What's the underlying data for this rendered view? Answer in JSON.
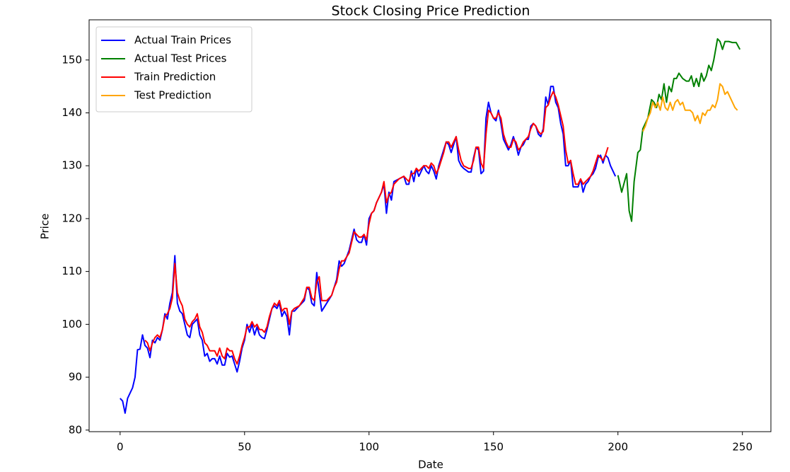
{
  "chart_data": {
    "type": "line",
    "title": "Stock Closing Price Prediction",
    "x_label": "Date",
    "y_label": "Price",
    "xlim": [
      -12.45,
      261.45
    ],
    "ylim": [
      79.7,
      157.6
    ],
    "xticks": [
      0,
      50,
      100,
      150,
      200,
      250
    ],
    "yticks": [
      80,
      90,
      100,
      110,
      120,
      130,
      140,
      150
    ],
    "legend": "upper left",
    "series": [
      {
        "name": "Actual Train Prices",
        "color": "#0000ff",
        "x": [
          0,
          1,
          2,
          3,
          5,
          6,
          7,
          8,
          9,
          10,
          11,
          12,
          13,
          14,
          15,
          16,
          17,
          18,
          19,
          20,
          21,
          22,
          23,
          24,
          25,
          26,
          27,
          28,
          29,
          30,
          31,
          32,
          33,
          34,
          35,
          36,
          37,
          38,
          39,
          40,
          41,
          42,
          43,
          44,
          45,
          46,
          47,
          48,
          49,
          50,
          51,
          52,
          53,
          54,
          55,
          56,
          57,
          58,
          59,
          60,
          61,
          62,
          63,
          64,
          65,
          66,
          67,
          68,
          69,
          70,
          72,
          74,
          75,
          76,
          77,
          78,
          79,
          80,
          81,
          83,
          85,
          86,
          87,
          88,
          89,
          90,
          92,
          93,
          94,
          95,
          96,
          97,
          98,
          99,
          100,
          101,
          102,
          103,
          105,
          106,
          107,
          108,
          109,
          110,
          112,
          114,
          115,
          116,
          117,
          118,
          119,
          120,
          122,
          123,
          124,
          125,
          126,
          127,
          128,
          130,
          131,
          132,
          133,
          135,
          136,
          137,
          138,
          140,
          141,
          142,
          143,
          144,
          145,
          146,
          147,
          148,
          149,
          150,
          151,
          152,
          153,
          154,
          155,
          156,
          157,
          158,
          159,
          160,
          161,
          162,
          163,
          164,
          165,
          166,
          167,
          168,
          169,
          170,
          171,
          172,
          173,
          174,
          175,
          176,
          177,
          178,
          179,
          180,
          181,
          182,
          183,
          184,
          185,
          186,
          187,
          188,
          189,
          190,
          191,
          192,
          193,
          194,
          195,
          196,
          197,
          198,
          199
        ],
        "values": [
          86,
          85.5,
          83.2,
          86,
          88,
          90,
          95.2,
          95.3,
          98,
          96,
          95.5,
          93.7,
          97,
          96.5,
          97.5,
          97,
          99,
          102,
          101,
          104,
          106,
          113,
          104,
          102.5,
          102,
          100,
          98,
          97.5,
          100,
          100.5,
          101,
          98,
          97,
          94,
          94.5,
          93,
          93.5,
          93.5,
          92.5,
          94,
          92.3,
          92.3,
          94.5,
          93.8,
          94,
          92.5,
          91,
          93,
          95.5,
          97,
          100,
          98.5,
          100,
          98,
          99.5,
          98,
          97.5,
          97.3,
          99,
          101,
          103,
          103.5,
          103,
          104,
          101.5,
          102.5,
          101.5,
          98,
          102.5,
          102.5,
          103.5,
          104.5,
          107,
          106.5,
          104,
          103.5,
          109.8,
          106,
          102.5,
          104,
          105.5,
          107,
          108.5,
          112,
          111,
          111.5,
          114,
          116,
          118,
          116,
          115.5,
          115.5,
          117,
          115,
          120,
          121,
          121.5,
          123,
          125,
          126.5,
          121,
          125,
          123.5,
          127,
          127.5,
          128,
          126.5,
          126.5,
          129,
          127,
          129.5,
          128,
          130,
          129,
          128.5,
          130,
          129,
          127.5,
          130,
          133,
          134.5,
          134,
          132.5,
          135.5,
          131,
          130,
          129.5,
          128.8,
          128.8,
          131.5,
          133.5,
          133,
          128.5,
          129,
          139,
          142,
          140,
          139,
          138.5,
          140.5,
          138,
          135,
          134,
          133,
          134,
          135.5,
          134,
          132,
          133.5,
          134,
          135,
          135,
          137.5,
          138,
          137.5,
          136,
          135.5,
          137,
          143,
          141.5,
          145,
          145,
          142,
          141,
          138,
          136,
          130,
          130,
          131,
          126,
          126,
          126,
          127.5,
          125,
          126.5,
          127,
          128,
          128.5,
          129.5,
          131.5,
          132,
          130.5,
          132,
          131.5,
          130,
          129,
          128
        ]
      },
      {
        "name": "Actual Test Prices",
        "color": "#008000",
        "x": [
          200,
          201.5,
          203.5,
          204.5,
          205.5,
          206.5,
          208,
          209,
          210,
          211,
          212,
          213.5,
          214.5,
          215.5,
          216.5,
          217.5,
          218.5,
          219.5,
          220.5,
          221.5,
          222.5,
          223.5,
          224.5,
          226,
          227.5,
          228.5,
          229.5,
          230.5,
          231.5,
          232.5,
          233.5,
          234.5,
          235.5,
          236.5,
          237.5,
          238.5,
          240,
          241,
          242,
          243,
          244.5,
          246,
          247.5,
          249
        ],
        "values": [
          128.2,
          125,
          128.5,
          121.5,
          119.5,
          127,
          132.5,
          133,
          137,
          138,
          139,
          142.5,
          142,
          141,
          143.5,
          142.5,
          145.5,
          142,
          145,
          144,
          146.5,
          146.5,
          147.5,
          146.5,
          146,
          146,
          147,
          145,
          146.5,
          145,
          147.5,
          146,
          147,
          149,
          148,
          150,
          154,
          153.5,
          152,
          153.5,
          153.5,
          153.3,
          153.3,
          152
        ]
      },
      {
        "name": "Train Prediction",
        "color": "#ff0000",
        "x": [
          10,
          11,
          12,
          13,
          14,
          15,
          16,
          17,
          18,
          19,
          20,
          21,
          22,
          23,
          24,
          25,
          26,
          27,
          28,
          29,
          30,
          31,
          32,
          33,
          34,
          35,
          36,
          37,
          38,
          39,
          40,
          41,
          42,
          43,
          44,
          45,
          46,
          47,
          48,
          49,
          50,
          51,
          52,
          53,
          54,
          55,
          56,
          57,
          58,
          59,
          60,
          61,
          62,
          63,
          64,
          65,
          66,
          67,
          68,
          69,
          70,
          72,
          74,
          75,
          76,
          77,
          78,
          79,
          80,
          81,
          83,
          85,
          86,
          87,
          88,
          89,
          90,
          92,
          93,
          94,
          95,
          96,
          97,
          98,
          99,
          100,
          101,
          102,
          103,
          105,
          106,
          107,
          108,
          109,
          110,
          112,
          114,
          115,
          116,
          117,
          118,
          119,
          120,
          122,
          123,
          124,
          125,
          126,
          127,
          128,
          130,
          131,
          132,
          133,
          135,
          136,
          137,
          138,
          140,
          141,
          142,
          143,
          144,
          145,
          146,
          147,
          148,
          149,
          150,
          151,
          152,
          153,
          154,
          155,
          156,
          157,
          158,
          159,
          160,
          161,
          162,
          163,
          164,
          165,
          166,
          167,
          168,
          169,
          170,
          171,
          172,
          173,
          174,
          175,
          176,
          177,
          178,
          179,
          180,
          181,
          182,
          183,
          184,
          185,
          186,
          187,
          188,
          189,
          190,
          191,
          192,
          193,
          194,
          195,
          196
        ],
        "values": [
          97,
          96.5,
          95,
          96.5,
          97.5,
          98,
          97.5,
          99,
          101.5,
          102,
          103,
          105,
          111.5,
          106,
          104.5,
          103.5,
          101,
          100,
          99.5,
          100.5,
          101,
          102,
          99.5,
          98.5,
          96.5,
          96,
          95,
          95,
          95,
          94,
          95.5,
          94,
          93.5,
          95.5,
          95,
          95,
          93.5,
          92.5,
          94,
          96,
          97.5,
          99.5,
          99.5,
          100.5,
          99.5,
          100,
          99,
          99,
          98.5,
          99.5,
          101.5,
          103,
          104,
          103.5,
          104.5,
          102.5,
          103,
          103,
          100,
          102.5,
          103,
          103.5,
          105,
          107,
          107,
          105,
          104.5,
          108,
          109,
          104.5,
          104.5,
          105.5,
          107,
          108,
          110.5,
          112,
          112,
          113.5,
          115.5,
          117.5,
          117,
          116.5,
          116.5,
          117,
          116,
          119,
          121,
          121.5,
          123,
          125,
          127,
          123,
          124.5,
          125,
          126.5,
          127.5,
          128,
          127.5,
          127,
          128.5,
          128.5,
          129.5,
          129,
          130,
          130,
          129.5,
          130.5,
          130,
          128.5,
          129.5,
          132.5,
          134.5,
          134.5,
          133.5,
          135.5,
          133,
          131,
          130,
          129.5,
          129.5,
          131,
          133.5,
          133.5,
          130.5,
          129.5,
          136,
          140.5,
          140,
          139,
          139,
          140,
          139,
          136,
          134.5,
          133.5,
          133.5,
          135,
          134.5,
          133,
          133.5,
          134.5,
          135,
          135.5,
          137,
          138,
          137.5,
          136.5,
          136,
          136.5,
          141,
          141.5,
          143,
          144,
          143,
          141.5,
          139.5,
          137.5,
          133,
          130.5,
          131,
          128.5,
          126.5,
          126.5,
          127.5,
          126.5,
          127,
          127.5,
          128,
          129,
          130.5,
          132,
          131.5,
          131,
          132,
          133.5
        ]
      },
      {
        "name": "Test Prediction",
        "color": "#ffa500",
        "x": [
          210,
          211,
          212,
          213,
          214,
          215,
          216,
          217,
          218,
          219,
          220,
          221,
          222,
          223,
          224,
          225,
          226,
          227,
          228,
          229,
          230,
          231,
          232,
          233,
          234,
          235,
          236,
          237,
          238,
          239,
          240,
          241,
          242,
          243,
          244,
          245,
          246,
          247,
          248
        ],
        "values": [
          136.5,
          137.5,
          139,
          140,
          142,
          141,
          142,
          140.5,
          143,
          141,
          140.5,
          142,
          140.5,
          142,
          142.5,
          141.5,
          142,
          140.5,
          140.5,
          140.5,
          140,
          138.5,
          139.5,
          138,
          140,
          139.5,
          140.5,
          140.5,
          141.5,
          141,
          142.5,
          145.5,
          145,
          143.5,
          144,
          143,
          142,
          141,
          140.5
        ]
      }
    ]
  }
}
